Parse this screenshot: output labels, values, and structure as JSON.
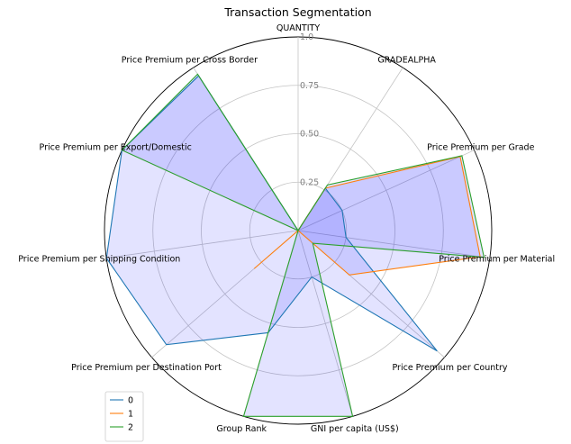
{
  "chart_data": {
    "type": "radar",
    "title": "Transaction Segmentation",
    "axes": [
      "QUANTITY",
      "GRADEALPHA",
      "Price Premium per Grade",
      "Price Premium per Material",
      "Price Premium per Country",
      "GNI per capita (US$)",
      "Group Rank",
      "Price Premium per Destination Port",
      "Price Premium per Shipping Condition",
      "Price Premium per Export/Domestic",
      "Price Premium per Cross Border"
    ],
    "radial_ticks": [
      "0.25",
      "0.50",
      "0.75",
      "1.0"
    ],
    "radial_range": [
      0,
      1
    ],
    "series": [
      {
        "name": "0",
        "color": "#1f77b4",
        "values": [
          0.0,
          0.26,
          0.25,
          0.25,
          0.95,
          0.25,
          0.55,
          0.9,
          1.0,
          1.0,
          0.95
        ]
      },
      {
        "name": "1",
        "color": "#ff7f0e",
        "values": [
          0.0,
          0.26,
          0.92,
          0.95,
          0.35,
          0.0,
          0.0,
          0.3,
          0.0,
          0.0,
          0.0
        ]
      },
      {
        "name": "2",
        "color": "#2ca02c",
        "values": [
          0.0,
          0.28,
          0.93,
          0.97,
          0.1,
          1.0,
          1.0,
          0.0,
          0.0,
          1.0,
          0.96
        ]
      }
    ],
    "grid": true,
    "legend_position": "lower-left"
  }
}
